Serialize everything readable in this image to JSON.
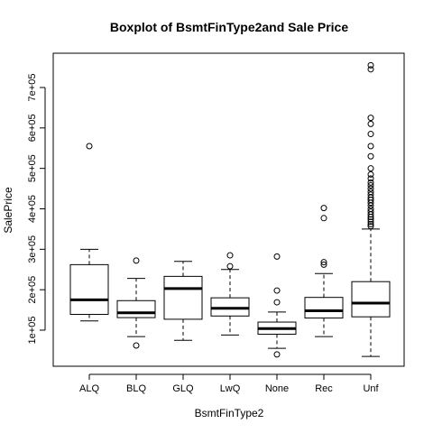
{
  "chart_data": {
    "type": "boxplot",
    "title": "Boxplot of BsmtFinType2and Sale Price",
    "xlabel": "BsmtFinType2",
    "ylabel": "SalePrice",
    "ylim": [
      0,
      780000
    ],
    "yticks": [
      100000,
      200000,
      300000,
      400000,
      500000,
      600000,
      700000
    ],
    "ytick_labels": [
      "1e+05",
      "2e+05",
      "3e+05",
      "4e+05",
      "5e+05",
      "6e+05",
      "7e+05"
    ],
    "grid": false,
    "categories": [
      "ALQ",
      "BLQ",
      "GLQ",
      "LwQ",
      "None",
      "Rec",
      "Unf"
    ],
    "boxes": [
      {
        "category": "ALQ",
        "whisker_low": 123000,
        "q1": 139000,
        "median": 175000,
        "q3": 262000,
        "whisker_high": 300000,
        "outliers": [
          555000
        ]
      },
      {
        "category": "BLQ",
        "whisker_low": 84000,
        "q1": 131000,
        "median": 143000,
        "q3": 173000,
        "whisker_high": 228000,
        "outliers": [
          272000,
          62000
        ]
      },
      {
        "category": "GLQ",
        "whisker_low": 75000,
        "q1": 127000,
        "median": 203000,
        "q3": 233000,
        "whisker_high": 270000,
        "outliers": []
      },
      {
        "category": "LwQ",
        "whisker_low": 88000,
        "q1": 135000,
        "median": 154000,
        "q3": 180000,
        "whisker_high": 250000,
        "outliers": [
          285000,
          258000
        ]
      },
      {
        "category": "None",
        "whisker_low": 55000,
        "q1": 90000,
        "median": 104000,
        "q3": 120000,
        "whisker_high": 145000,
        "outliers": [
          282000,
          198000,
          169000,
          40000
        ]
      },
      {
        "category": "Rec",
        "whisker_low": 84000,
        "q1": 130000,
        "median": 148000,
        "q3": 181000,
        "whisker_high": 240000,
        "outliers": [
          402000,
          377000,
          268000,
          262000
        ]
      },
      {
        "category": "Unf",
        "whisker_low": 35000,
        "q1": 133000,
        "median": 167000,
        "q3": 220000,
        "whisker_high": 350000,
        "outliers": [
          755000,
          745000,
          625000,
          610000,
          585000,
          555000,
          530000,
          500000,
          485000,
          475000,
          465000,
          458000,
          450000,
          442000,
          435000,
          428000,
          422000,
          415000,
          408000,
          400000,
          393000,
          386000,
          380000,
          374000,
          368000,
          362000,
          357000
        ]
      }
    ]
  }
}
